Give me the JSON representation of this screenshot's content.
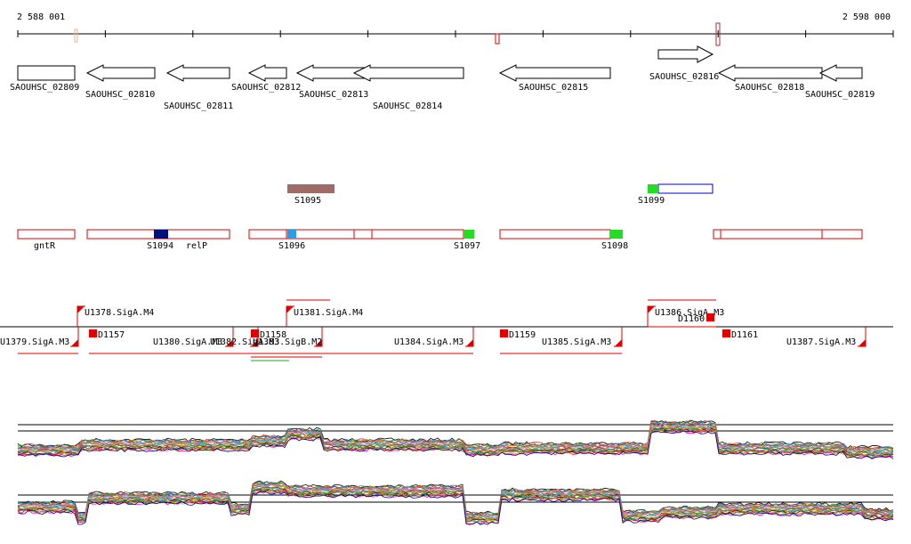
{
  "ruler": {
    "start_label": "2 588 001",
    "end_label": "2 598 000"
  },
  "colors": {
    "gene_stroke": "#000000",
    "feature_red": "#e00000",
    "salmon": "#f0b090",
    "s1095_brown": "#a06a66",
    "s1094_navy": "#00107a",
    "s1096_blue": "#2a9ee8",
    "green": "#22dd22",
    "s1099_box_blue": "#0000cc",
    "track_line": "#000000"
  },
  "genes": [
    {
      "label": "SAOUHSC_02809",
      "dir": "right"
    },
    {
      "label": "SAOUHSC_02810",
      "dir": "left"
    },
    {
      "label": "SAOUHSC_02811",
      "dir": "left"
    },
    {
      "label": "SAOUHSC_02812",
      "dir": "left"
    },
    {
      "label": "SAOUHSC_02813",
      "dir": "left"
    },
    {
      "label": "SAOUHSC_02814",
      "dir": "left"
    },
    {
      "label": "SAOUHSC_02815",
      "dir": "left"
    },
    {
      "label": "SAOUHSC_02816",
      "dir": "right"
    },
    {
      "label": "SAOUHSC_02818",
      "dir": "left"
    },
    {
      "label": "SAOUHSC_02819",
      "dir": "left"
    }
  ],
  "srna_labels": {
    "s1095": "S1095",
    "s1099": "S1099",
    "gntR": "gntR",
    "s1094": "S1094",
    "relP": "relP",
    "s1096": "S1096",
    "s1097": "S1097",
    "s1098": "S1098"
  },
  "promoters": [
    "U1378.SigA.M4",
    "U1381.SigA.M4",
    "U1386.SigA.M3",
    "U1379.SigA.M3",
    "U1380.SigA.M3",
    "U1382.SigA.M3",
    "U1383.SigB.M2",
    "U1384.SigA.M3",
    "U1385.SigA.M3",
    "U1387.SigA.M3"
  ],
  "terminators": [
    "D1157",
    "D1158",
    "D1159",
    "D1160",
    "D1161"
  ],
  "expression": {
    "series_colors": [
      "#000000",
      "#d62728",
      "#2ca02c",
      "#1f77b4",
      "#ff7f0e",
      "#9467bd",
      "#8c564b",
      "#e377c2",
      "#7f7f7f",
      "#bcbd22",
      "#17becf",
      "#b22222",
      "#6b8e23",
      "#cd853f",
      "#4682b4",
      "#800000",
      "#228b22",
      "#daa520",
      "#ff1493",
      "#00008b"
    ]
  }
}
